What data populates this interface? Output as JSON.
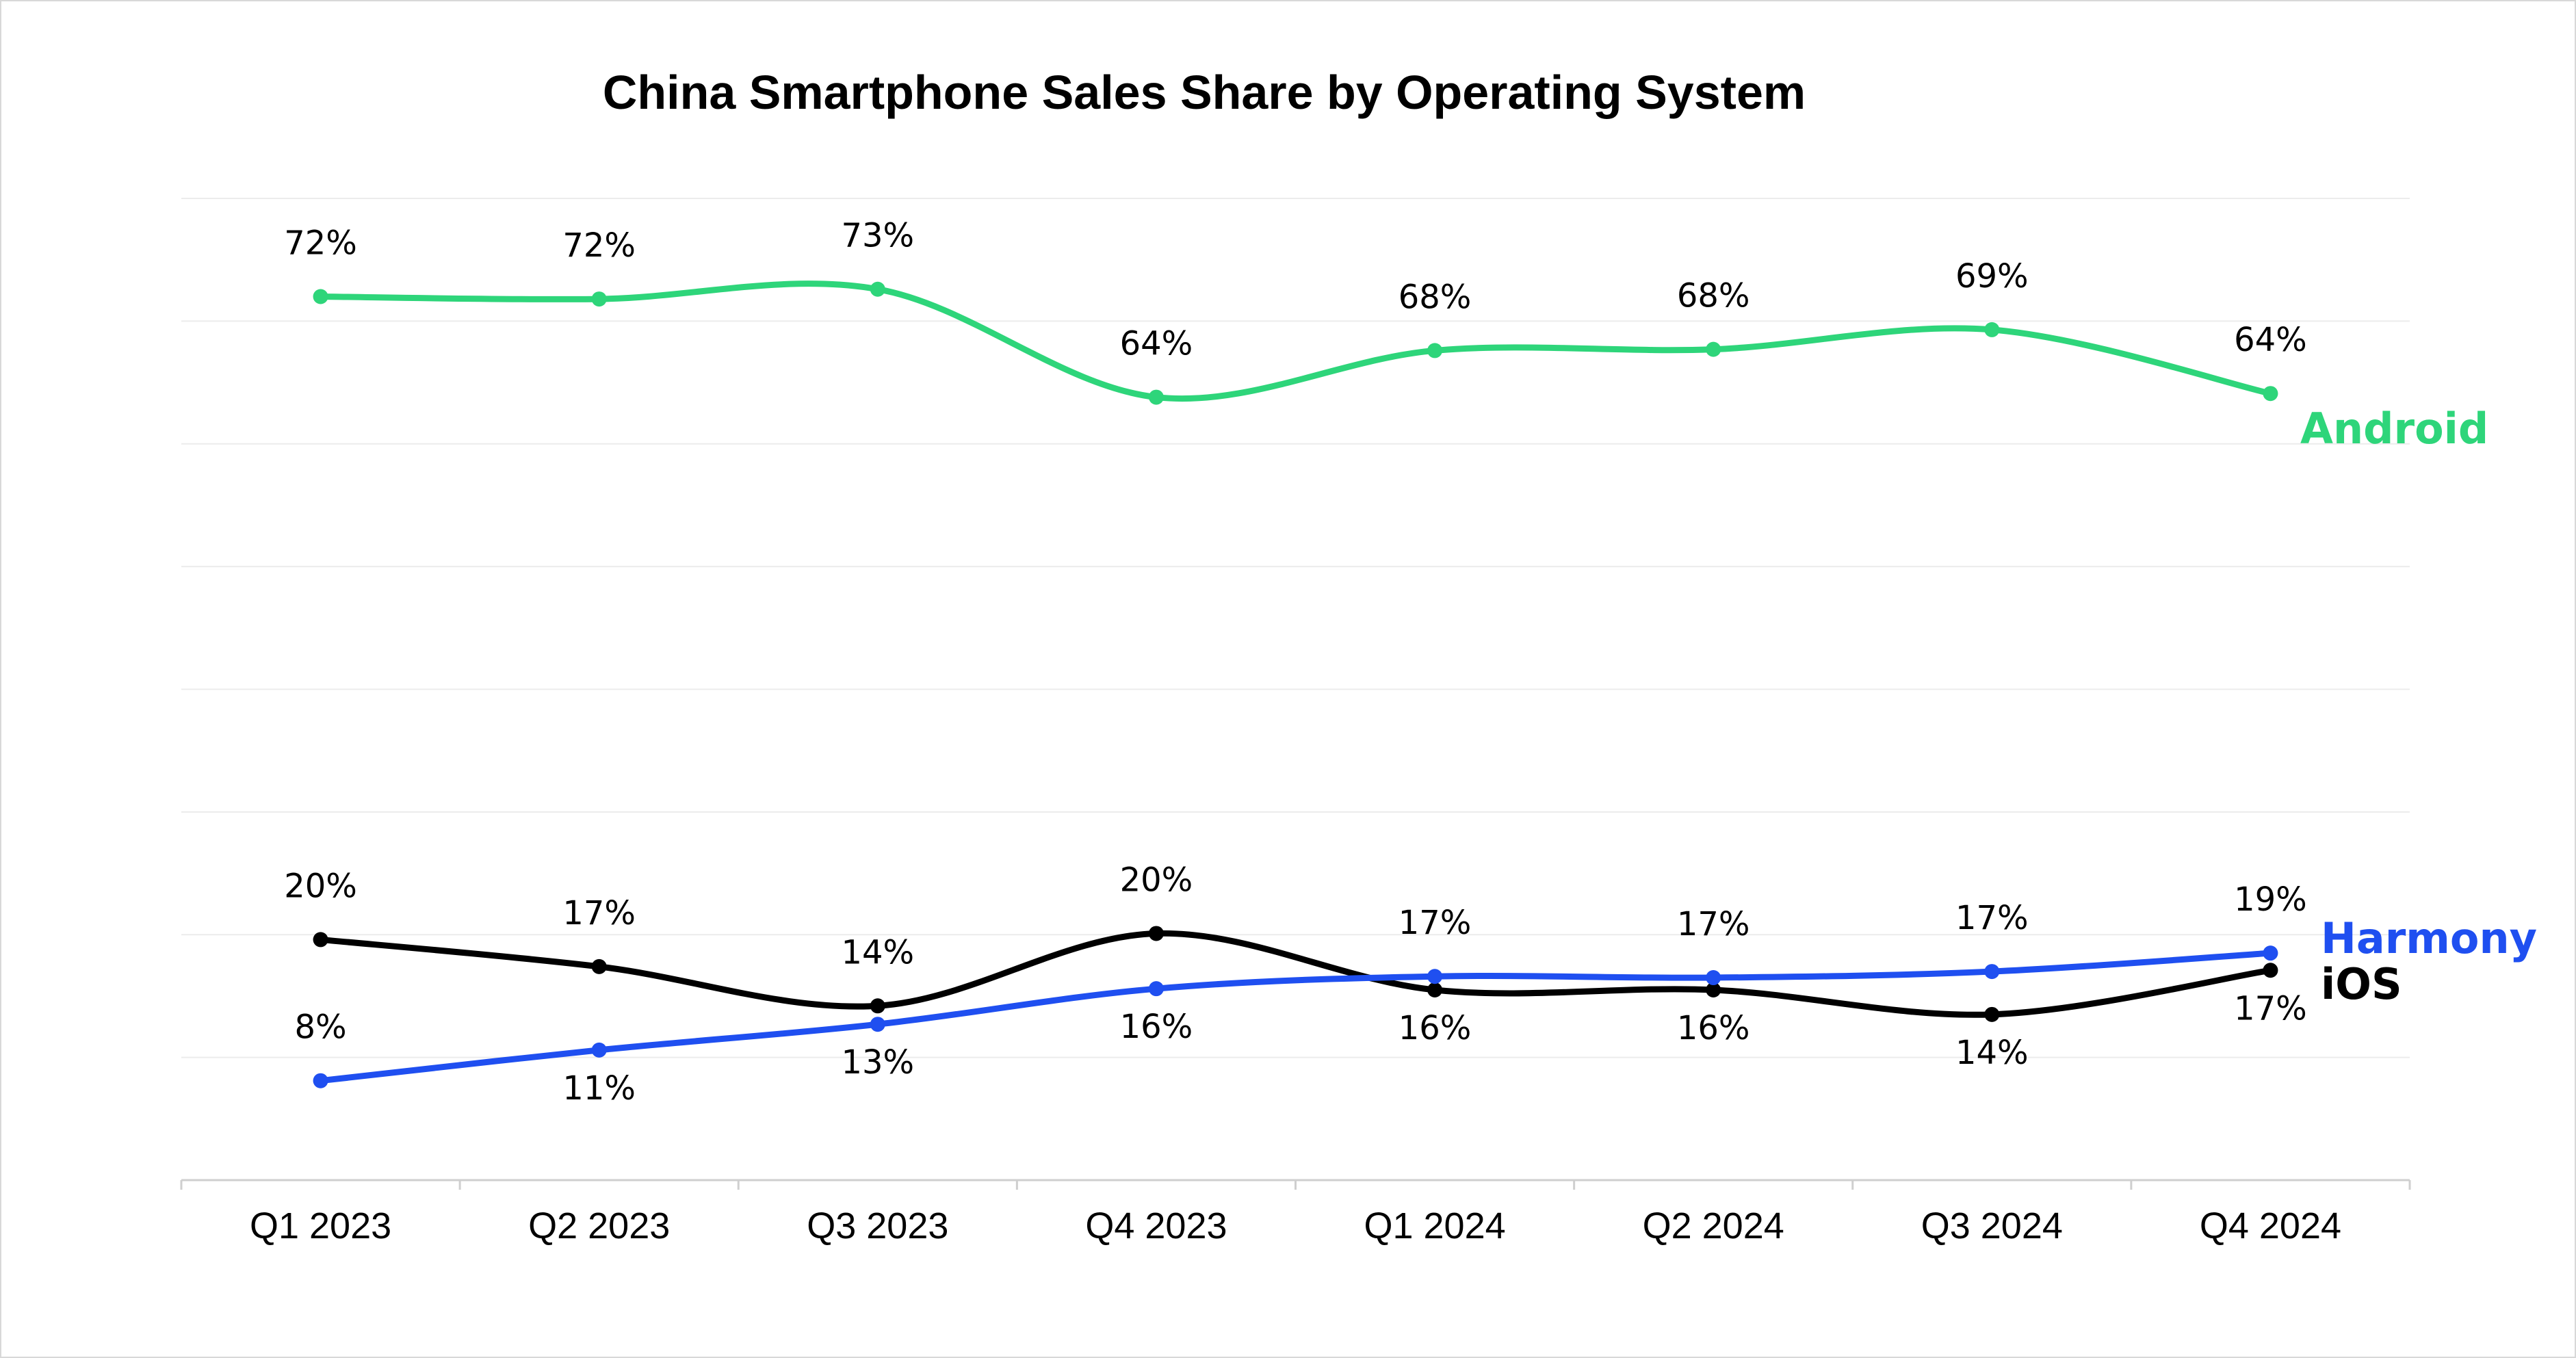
{
  "chart_data": {
    "type": "line",
    "title": "China Smartphone Sales Share by Operating System",
    "xlabel": "",
    "ylabel": "",
    "categories": [
      "Q1 2023",
      "Q2 2023",
      "Q3 2023",
      "Q4 2023",
      "Q1 2024",
      "Q2 2024",
      "Q3 2024",
      "Q4 2024"
    ],
    "ylim": [
      0,
      80
    ],
    "grid": true,
    "legend": "inline labels at right end of each series",
    "series": [
      {
        "name": "Android",
        "color": "#2ed57a",
        "values": [
          72,
          72,
          73,
          64,
          68,
          68,
          69,
          64
        ],
        "plot_values": [
          72.0,
          71.8,
          72.6,
          63.8,
          67.6,
          67.7,
          69.3,
          64.1
        ],
        "labels": [
          "72%",
          "72%",
          "73%",
          "64%",
          "68%",
          "68%",
          "69%",
          "64%"
        ],
        "label_positions": [
          "above",
          "above",
          "above",
          "above",
          "above",
          "above",
          "above",
          "above"
        ]
      },
      {
        "name": "iOS",
        "color": "#000000",
        "values": [
          20,
          17,
          14,
          20,
          16,
          16,
          14,
          17
        ],
        "plot_values": [
          19.6,
          17.4,
          14.2,
          20.1,
          15.5,
          15.5,
          13.5,
          17.1
        ],
        "labels": [
          "20%",
          "17%",
          "14%",
          "20%",
          "16%",
          "16%",
          "14%",
          "17%"
        ],
        "label_positions": [
          "above",
          "above",
          "above",
          "above",
          "below",
          "below",
          "below",
          "below"
        ]
      },
      {
        "name": "Harmony",
        "color": "#1f4ff0",
        "values": [
          8,
          11,
          13,
          16,
          17,
          17,
          17,
          19
        ],
        "plot_values": [
          8.1,
          10.6,
          12.7,
          15.6,
          16.6,
          16.5,
          17.0,
          18.5
        ],
        "labels": [
          "8%",
          "11%",
          "13%",
          "16%",
          "17%",
          "17%",
          "17%",
          "19%"
        ],
        "label_positions": [
          "above",
          "below",
          "below",
          "below",
          "above",
          "above",
          "above",
          "above"
        ]
      }
    ]
  }
}
